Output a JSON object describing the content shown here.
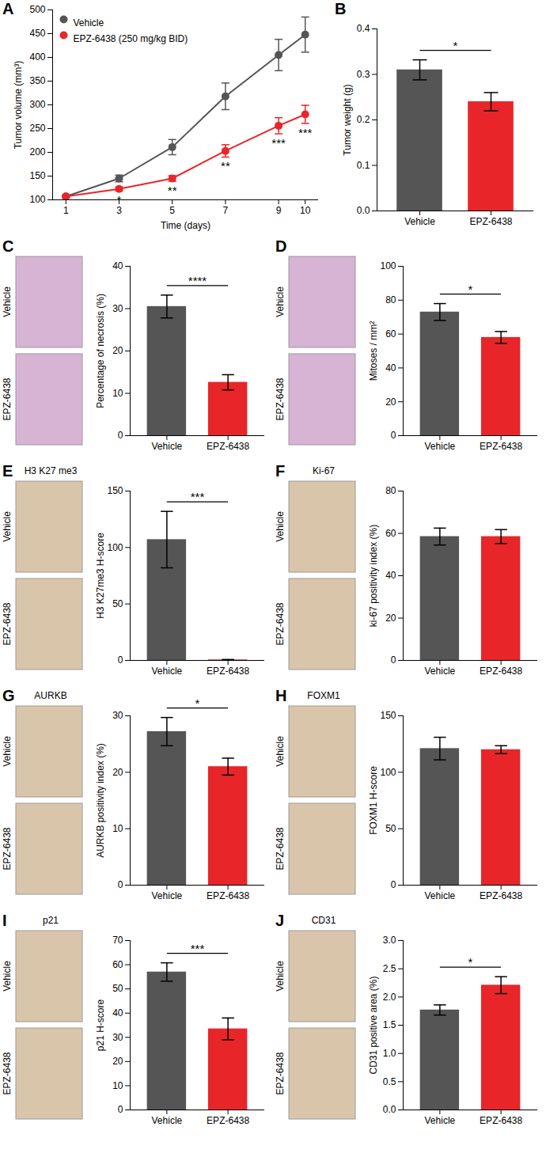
{
  "chart_data": [
    {
      "panel": "A",
      "type": "line",
      "x_label": "Time (days)",
      "y_label": "Tumor volume (mm³)",
      "x": [
        1,
        3,
        5,
        7,
        9,
        10
      ],
      "series": [
        {
          "name": "Vehicle",
          "color": "#555555",
          "marker": "circle",
          "values": [
            107,
            145,
            211,
            318,
            405,
            448
          ],
          "errors": [
            3,
            7,
            16,
            28,
            33,
            37
          ]
        },
        {
          "name": "EPZ-6438 (250 mg/kg BID)",
          "color": "#e8262a",
          "marker": "circle",
          "values": [
            107,
            123,
            145,
            203,
            256,
            280
          ],
          "errors": [
            3,
            4,
            6,
            13,
            17,
            19
          ]
        }
      ],
      "xlim": [
        0.5,
        10.5
      ],
      "xticks": [
        1,
        3,
        5,
        7,
        9,
        10
      ],
      "ylim": [
        100,
        500
      ],
      "yticks": [
        100,
        150,
        200,
        250,
        300,
        350,
        400,
        450,
        500
      ],
      "legend": "top-left",
      "annotations": [
        {
          "x": 3,
          "text": "*"
        },
        {
          "x": 5,
          "text": "**"
        },
        {
          "x": 7,
          "text": "**"
        },
        {
          "x": 9,
          "text": "***"
        },
        {
          "x": 10,
          "text": "***"
        }
      ]
    },
    {
      "panel": "B",
      "type": "bar",
      "categories": [
        "Vehicle",
        "EPZ-6438"
      ],
      "values": [
        0.31,
        0.24
      ],
      "errors": [
        0.022,
        0.02
      ],
      "colors": [
        "#555555",
        "#e8262a"
      ],
      "y_label": "Tumor weight (g)",
      "ylim": [
        0,
        0.4
      ],
      "yticks": [
        {
          "value": 0,
          "label": "0.0"
        },
        0.1,
        0.2,
        0.3,
        0.4
      ],
      "significance": "*"
    },
    {
      "panel": "C",
      "type": "bar",
      "image_rows": [
        "Vehicle",
        "EPZ-6438"
      ],
      "categories": [
        "Vehicle",
        "EPZ-6438"
      ],
      "values": [
        30.5,
        12.6
      ],
      "errors": [
        2.7,
        1.8
      ],
      "colors": [
        "#555555",
        "#e8262a"
      ],
      "y_label": "Percentage of necrosis (%)",
      "ylim": [
        0,
        40
      ],
      "yticks": [
        0,
        10,
        20,
        30,
        40
      ],
      "significance": "****"
    },
    {
      "panel": "D",
      "type": "bar",
      "image_rows": [
        "Vehicle",
        "EPZ-6438"
      ],
      "categories": [
        "Vehicle",
        "EPZ-6438"
      ],
      "values": [
        73,
        58
      ],
      "errors": [
        5,
        3.5
      ],
      "colors": [
        "#555555",
        "#e8262a"
      ],
      "y_label": "Mitoses / mm²",
      "ylim": [
        0,
        100
      ],
      "yticks": [
        0,
        20,
        40,
        60,
        80,
        100
      ],
      "significance": "*"
    },
    {
      "panel": "E",
      "type": "bar",
      "image_title": "H3 K27 me3",
      "image_rows": [
        "Vehicle",
        "EPZ-6438"
      ],
      "categories": [
        "Vehicle",
        "EPZ-6438"
      ],
      "values": [
        107,
        0.5
      ],
      "errors": [
        25,
        0.3
      ],
      "colors": [
        "#555555",
        "#e8262a"
      ],
      "y_label": "H3 K27me3 H-score",
      "ylim": [
        0,
        150
      ],
      "yticks": [
        0,
        50,
        100,
        150
      ],
      "significance": "***"
    },
    {
      "panel": "F",
      "type": "bar",
      "image_title": "Ki-67",
      "image_rows": [
        "Vehicle",
        "EPZ-6438"
      ],
      "categories": [
        "Vehicle",
        "EPZ-6438"
      ],
      "values": [
        58.5,
        58.5
      ],
      "errors": [
        4,
        3.3
      ],
      "colors": [
        "#555555",
        "#e8262a"
      ],
      "y_label": "ki-67 positivity index (%)",
      "ylim": [
        0,
        80
      ],
      "yticks": [
        0,
        20,
        40,
        60,
        80
      ]
    },
    {
      "panel": "G",
      "type": "bar",
      "image_title": "AURKB",
      "image_rows": [
        "Vehicle",
        "EPZ-6438"
      ],
      "categories": [
        "Vehicle",
        "EPZ-6438"
      ],
      "values": [
        27.2,
        21
      ],
      "errors": [
        2.5,
        1.5
      ],
      "colors": [
        "#555555",
        "#e8262a"
      ],
      "y_label": "AURKB positivity index (%)",
      "ylim": [
        0,
        30
      ],
      "yticks": [
        0,
        10,
        20,
        30
      ],
      "significance": "*"
    },
    {
      "panel": "H",
      "type": "bar",
      "image_title": "FOXM1",
      "image_rows": [
        "Vehicle",
        "EPZ-6438"
      ],
      "categories": [
        "Vehicle",
        "EPZ-6438"
      ],
      "values": [
        121,
        120
      ],
      "errors": [
        10,
        3.5
      ],
      "colors": [
        "#555555",
        "#e8262a"
      ],
      "y_label": "FOXM1 H-score",
      "ylim": [
        0,
        150
      ],
      "yticks": [
        0,
        50,
        100,
        150
      ]
    },
    {
      "panel": "I",
      "type": "bar",
      "image_title": "p21",
      "image_rows": [
        "Vehicle",
        "EPZ-6438"
      ],
      "categories": [
        "Vehicle",
        "EPZ-6438"
      ],
      "values": [
        57,
        33.5
      ],
      "errors": [
        3.8,
        4.5
      ],
      "colors": [
        "#555555",
        "#e8262a"
      ],
      "y_label": "p21 H-score",
      "ylim": [
        0,
        70
      ],
      "yticks": [
        0,
        10,
        20,
        30,
        40,
        50,
        60,
        70
      ],
      "significance": "***"
    },
    {
      "panel": "J",
      "type": "bar",
      "image_title": "CD31",
      "image_rows": [
        "Vehicle",
        "EPZ-6438"
      ],
      "categories": [
        "Vehicle",
        "EPZ-6438"
      ],
      "values": [
        1.77,
        2.21
      ],
      "errors": [
        0.09,
        0.15
      ],
      "colors": [
        "#555555",
        "#e8262a"
      ],
      "y_label": "CD31 positive area (%)",
      "ylim": [
        0,
        3
      ],
      "yticks": [
        {
          "value": 0,
          "label": "0.0"
        },
        0.5,
        {
          "value": 1,
          "label": "1.0"
        },
        1.5,
        {
          "value": 2,
          "label": "2.0"
        },
        2.5,
        {
          "value": 3,
          "label": "3.0"
        }
      ],
      "significance": "*"
    }
  ]
}
